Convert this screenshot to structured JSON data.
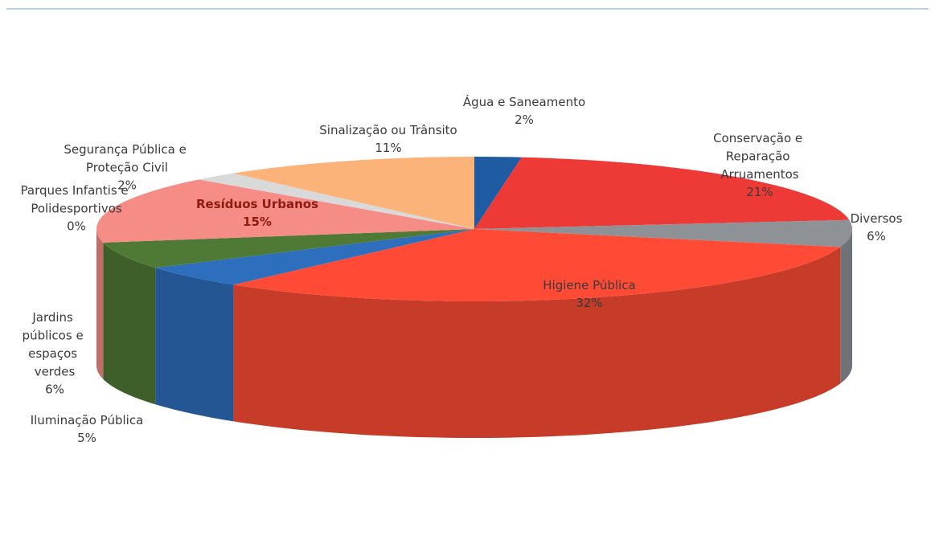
{
  "chart_data": {
    "type": "pie3d",
    "categories": [
      "Água e Saneamento",
      "Conservação e Reparação Arruamentos",
      "Diversos",
      "Higiene Pública",
      "Iluminação Pública",
      "Jardins públicos e espaços verdes",
      "Parques Infantis e Polidesportivos",
      "Resíduos Urbanos",
      "Segurança Pública e Proteção Civil",
      "Sinalização ou Trânsito"
    ],
    "values": [
      2,
      21,
      6,
      32,
      5,
      6,
      0,
      15,
      2,
      11
    ],
    "value_labels": [
      "2%",
      "21%",
      "6%",
      "32%",
      "5%",
      "6%",
      "0%",
      "15%",
      "2%",
      "11%"
    ],
    "colors": [
      "#1f5ba3",
      "#ee3a36",
      "#8e9297",
      "#ff4b35",
      "#2d6ebd",
      "#4f7a36",
      "#c8c8c8",
      "#f68c86",
      "#d9d9d9",
      "#fbb379"
    ]
  }
}
